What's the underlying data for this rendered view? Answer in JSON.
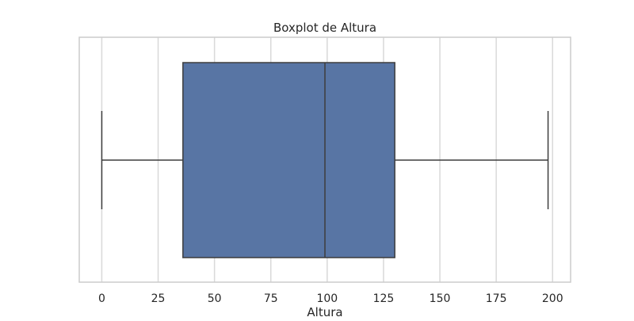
{
  "chart_data": {
    "type": "boxplot",
    "title": "Boxplot de Altura",
    "xlabel": "Altura",
    "ylabel": "",
    "orientation": "horizontal",
    "xlim": [
      -10,
      208
    ],
    "xticks": [
      0,
      25,
      50,
      75,
      100,
      125,
      150,
      175,
      200
    ],
    "grid": "x",
    "box": {
      "min": 0,
      "q1": 36,
      "median": 99,
      "q3": 130,
      "max": 198
    },
    "colors": {
      "box_fill": "#5875a4",
      "box_edge": "#3d3d3d",
      "whisker": "#3d3d3d",
      "median": "#3d3d3d",
      "grid": "#d9d9d9",
      "axes_edge": "#cccccc",
      "text": "#262626"
    }
  }
}
